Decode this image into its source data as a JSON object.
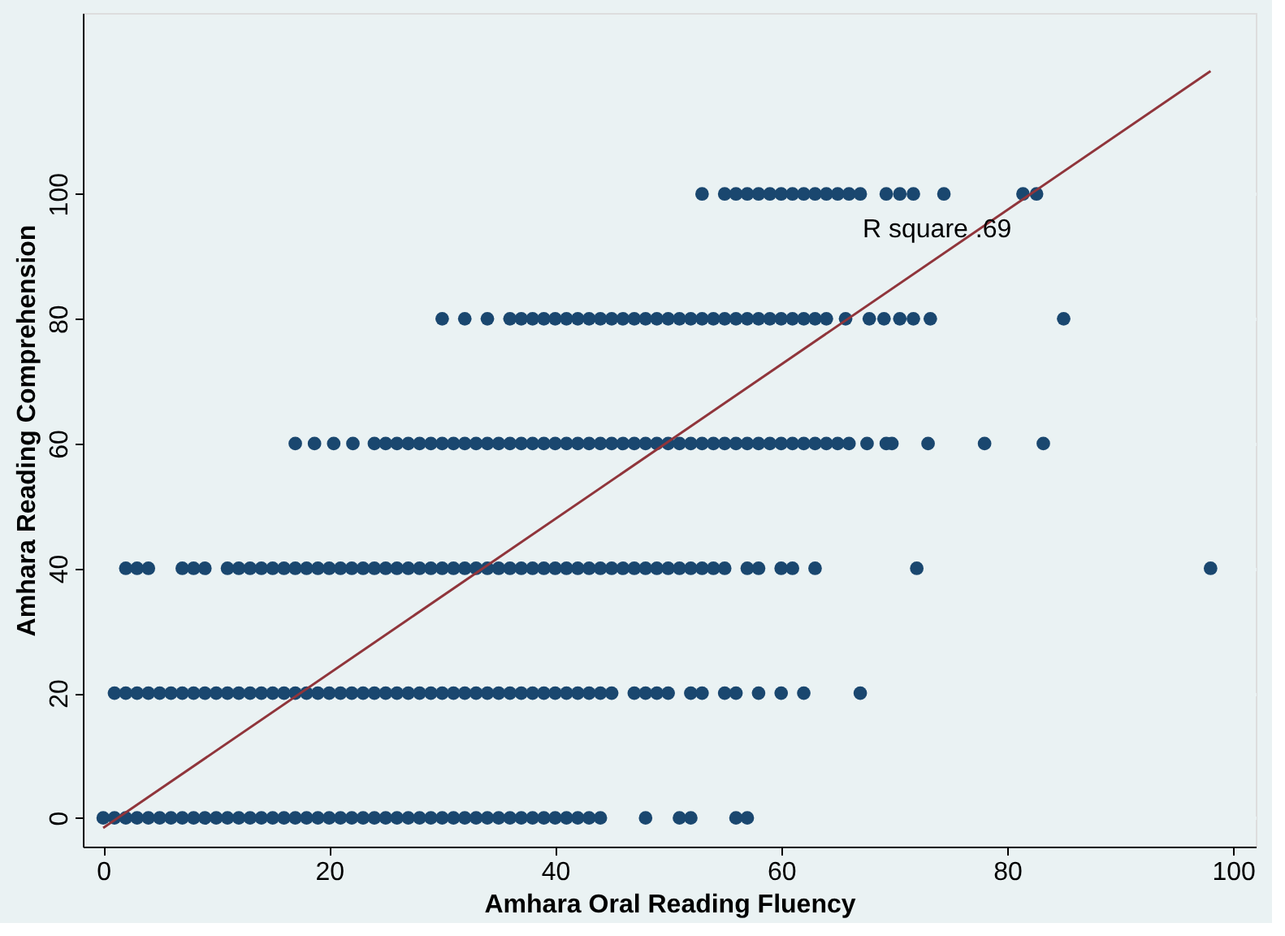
{
  "chart_data": {
    "type": "scatter",
    "xlabel": "Amhara Oral Reading Fluency",
    "ylabel": "Amhara Reading Comprehension",
    "xlim": [
      -1.8,
      102
    ],
    "ylim": [
      -4.6,
      129
    ],
    "xticks": [
      0,
      20,
      40,
      60,
      80,
      100
    ],
    "yticks": [
      0,
      20,
      40,
      60,
      80,
      100
    ],
    "grid": "y",
    "marker": "circle",
    "annotations": [
      "R square .69"
    ],
    "series": [
      {
        "color": "#1a476f",
        "x": [
          0,
          1,
          2,
          3,
          4,
          5,
          6,
          7,
          8,
          9,
          10,
          11,
          12,
          13,
          14,
          15,
          16,
          17,
          18,
          19,
          20,
          21,
          22,
          23,
          24,
          25,
          26,
          27,
          28,
          29,
          30,
          31,
          32,
          33,
          34,
          35,
          36,
          37,
          38,
          39,
          40,
          41,
          42,
          43,
          44,
          48,
          51,
          52,
          56,
          57
        ],
        "values": [
          0,
          0,
          0,
          0,
          0,
          0,
          0,
          0,
          0,
          0,
          0,
          0,
          0,
          0,
          0,
          0,
          0,
          0,
          0,
          0,
          0,
          0,
          0,
          0,
          0,
          0,
          0,
          0,
          0,
          0,
          0,
          0,
          0,
          0,
          0,
          0,
          0,
          0,
          0,
          0,
          0,
          0,
          0,
          0,
          0,
          0,
          0,
          0,
          0,
          0
        ]
      },
      {
        "color": "#1a476f",
        "x": [
          1,
          2,
          3,
          4,
          5,
          6,
          7,
          8,
          9,
          10,
          11,
          12,
          13,
          14,
          15,
          16,
          17,
          18,
          19,
          20,
          21,
          22,
          23,
          24,
          25,
          26,
          27,
          28,
          29,
          30,
          31,
          32,
          33,
          34,
          35,
          36,
          37,
          38,
          39,
          40,
          41,
          42,
          43,
          44,
          45,
          47,
          48,
          49,
          50,
          52,
          53,
          55,
          56,
          58,
          60,
          62,
          67
        ],
        "values": [
          20,
          20,
          20,
          20,
          20,
          20,
          20,
          20,
          20,
          20,
          20,
          20,
          20,
          20,
          20,
          20,
          20,
          20,
          20,
          20,
          20,
          20,
          20,
          20,
          20,
          20,
          20,
          20,
          20,
          20,
          20,
          20,
          20,
          20,
          20,
          20,
          20,
          20,
          20,
          20,
          20,
          20,
          20,
          20,
          20,
          20,
          20,
          20,
          20,
          20,
          20,
          20,
          20,
          20,
          20,
          20,
          20
        ]
      },
      {
        "color": "#1a476f",
        "x": [
          2,
          3,
          4,
          7,
          8,
          9,
          11,
          12,
          13,
          14,
          15,
          16,
          17,
          18,
          19,
          20,
          21,
          22,
          23,
          24,
          25,
          26,
          27,
          28,
          29,
          30,
          31,
          32,
          33,
          34,
          35,
          36,
          37,
          38,
          39,
          40,
          41,
          42,
          43,
          44,
          45,
          46,
          47,
          48,
          49,
          50,
          51,
          52,
          53,
          54,
          55,
          57,
          58,
          60,
          61,
          63,
          72,
          98
        ],
        "values": [
          40,
          40,
          40,
          40,
          40,
          40,
          40,
          40,
          40,
          40,
          40,
          40,
          40,
          40,
          40,
          40,
          40,
          40,
          40,
          40,
          40,
          40,
          40,
          40,
          40,
          40,
          40,
          40,
          40,
          40,
          40,
          40,
          40,
          40,
          40,
          40,
          40,
          40,
          40,
          40,
          40,
          40,
          40,
          40,
          40,
          40,
          40,
          40,
          40,
          40,
          40,
          40,
          40,
          40,
          40,
          40,
          40,
          40
        ]
      },
      {
        "color": "#1a476f",
        "x": [
          17,
          18.7,
          20.4,
          22.1,
          24,
          25,
          26,
          27,
          28,
          29,
          30,
          31,
          32,
          33,
          34,
          35,
          36,
          37,
          38,
          39,
          40,
          41,
          42,
          43,
          44,
          45,
          46,
          47,
          48,
          49,
          50,
          51,
          52,
          53,
          54,
          55,
          56,
          57,
          58,
          59,
          60,
          61,
          62,
          63,
          64,
          65,
          66,
          67.6,
          69.3,
          69.8,
          73,
          78,
          83.2
        ],
        "values": [
          60,
          60,
          60,
          60,
          60,
          60,
          60,
          60,
          60,
          60,
          60,
          60,
          60,
          60,
          60,
          60,
          60,
          60,
          60,
          60,
          60,
          60,
          60,
          60,
          60,
          60,
          60,
          60,
          60,
          60,
          60,
          60,
          60,
          60,
          60,
          60,
          60,
          60,
          60,
          60,
          60,
          60,
          60,
          60,
          60,
          60,
          60,
          60,
          60,
          60,
          60,
          60,
          60
        ]
      },
      {
        "color": "#1a476f",
        "x": [
          30,
          32,
          34,
          36,
          37,
          38,
          39,
          40,
          41,
          42,
          43,
          44,
          45,
          46,
          47,
          48,
          49,
          50,
          51,
          52,
          53,
          54,
          55,
          56,
          57,
          58,
          59,
          60,
          61,
          62,
          63,
          64,
          65.7,
          67.8,
          69.1,
          70.5,
          71.7,
          73.2,
          85
        ],
        "values": [
          80,
          80,
          80,
          80,
          80,
          80,
          80,
          80,
          80,
          80,
          80,
          80,
          80,
          80,
          80,
          80,
          80,
          80,
          80,
          80,
          80,
          80,
          80,
          80,
          80,
          80,
          80,
          80,
          80,
          80,
          80,
          80,
          80,
          80,
          80,
          80,
          80,
          80,
          80
        ]
      },
      {
        "color": "#1a476f",
        "x": [
          53,
          55,
          56,
          57,
          58,
          59,
          60,
          61,
          62,
          63,
          64,
          65,
          66,
          67,
          69.3,
          70.5,
          71.7,
          74.4,
          81.4,
          82.6
        ],
        "values": [
          100,
          100,
          100,
          100,
          100,
          100,
          100,
          100,
          100,
          100,
          100,
          100,
          100,
          100,
          100,
          100,
          100,
          100,
          100,
          100
        ]
      },
      {
        "type": "line",
        "color": "#90353b",
        "line_style": "solid",
        "marker": "none",
        "x": [
          0,
          98
        ],
        "values": [
          -1.6,
          119.7
        ]
      }
    ]
  }
}
